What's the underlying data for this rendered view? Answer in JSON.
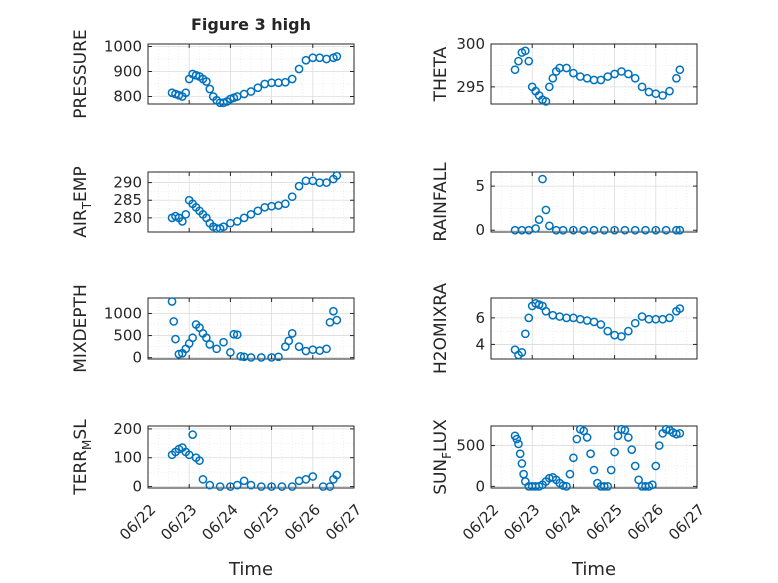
{
  "figure": {
    "title": "Figure 3 high",
    "xlabel": "Time",
    "date_ticks": [
      "06/22",
      "06/23",
      "06/24",
      "06/25",
      "06/26",
      "06/27"
    ]
  },
  "chart_data": [
    {
      "type": "scatter",
      "id": "pressure",
      "title": "Figure 3 high",
      "ylabel": "PRESSURE",
      "xlabel": "",
      "ylim": [
        770,
        1010
      ],
      "yticks": [
        "800",
        "900",
        "1000"
      ],
      "ytick_values": [
        800,
        900,
        1000
      ],
      "grid": true,
      "marker": "circle-open",
      "color": "#0072BD",
      "x": [
        "06/22 14:00",
        "06/22 16:00",
        "06/22 18:00",
        "06/22 20:00",
        "06/22 22:00",
        "06/23 00:00",
        "06/23 02:00",
        "06/23 04:00",
        "06/23 06:00",
        "06/23 08:00",
        "06/23 10:00",
        "06/23 12:00",
        "06/23 14:00",
        "06/23 16:00",
        "06/23 18:00",
        "06/23 20:00",
        "06/23 22:00",
        "06/24 00:00",
        "06/24 02:00",
        "06/24 04:00",
        "06/24 08:00",
        "06/24 12:00",
        "06/24 16:00",
        "06/24 20:00",
        "06/25 00:00",
        "06/25 04:00",
        "06/25 08:00",
        "06/25 12:00",
        "06/25 16:00",
        "06/25 20:00",
        "06/26 00:00",
        "06/26 04:00",
        "06/26 08:00",
        "06/26 12:00",
        "06/26 14:00"
      ],
      "y": [
        815,
        810,
        805,
        800,
        815,
        870,
        890,
        885,
        880,
        870,
        860,
        830,
        800,
        785,
        775,
        775,
        780,
        790,
        795,
        800,
        810,
        820,
        835,
        850,
        855,
        855,
        857,
        870,
        910,
        945,
        955,
        955,
        950,
        955,
        960
      ]
    },
    {
      "type": "scatter",
      "id": "theta",
      "title": "",
      "ylabel": "THETA",
      "xlabel": "",
      "ylim": [
        293,
        300
      ],
      "yticks": [
        "295",
        "300"
      ],
      "ytick_values": [
        295,
        300
      ],
      "grid": true,
      "marker": "circle-open",
      "color": "#0072BD",
      "x": [
        "06/22 14:00",
        "06/22 16:00",
        "06/22 18:00",
        "06/22 20:00",
        "06/22 22:00",
        "06/23 00:00",
        "06/23 02:00",
        "06/23 04:00",
        "06/23 06:00",
        "06/23 08:00",
        "06/23 10:00",
        "06/23 12:00",
        "06/23 14:00",
        "06/23 16:00",
        "06/23 20:00",
        "06/24 00:00",
        "06/24 04:00",
        "06/24 08:00",
        "06/24 12:00",
        "06/24 16:00",
        "06/24 20:00",
        "06/25 00:00",
        "06/25 04:00",
        "06/25 08:00",
        "06/25 12:00",
        "06/25 16:00",
        "06/25 20:00",
        "06/26 00:00",
        "06/26 04:00",
        "06/26 08:00",
        "06/26 12:00",
        "06/26 14:00"
      ],
      "y": [
        297,
        298,
        299,
        299.2,
        298,
        295,
        294.5,
        294,
        293.5,
        293.3,
        295,
        296,
        296.8,
        297.2,
        297.2,
        296.6,
        296.2,
        296,
        295.8,
        295.8,
        296.2,
        296.5,
        296.8,
        296.5,
        296,
        295,
        294.4,
        294.2,
        294,
        294.5,
        296,
        297
      ]
    },
    {
      "type": "scatter",
      "id": "air_temp",
      "title": "",
      "ylabel": "AIR_TEMP",
      "ylabel_main": "AIR",
      "ylabel_sub": "T",
      "ylabel_rest": "EMP",
      "xlabel": "",
      "ylim": [
        276,
        293
      ],
      "yticks": [
        "280",
        "285",
        "290"
      ],
      "ytick_values": [
        280,
        285,
        290
      ],
      "grid": true,
      "marker": "circle-open",
      "color": "#0072BD",
      "x": [
        "06/22 14:00",
        "06/22 16:00",
        "06/22 18:00",
        "06/22 20:00",
        "06/22 22:00",
        "06/23 00:00",
        "06/23 02:00",
        "06/23 04:00",
        "06/23 06:00",
        "06/23 08:00",
        "06/23 10:00",
        "06/23 12:00",
        "06/23 14:00",
        "06/23 16:00",
        "06/23 18:00",
        "06/23 20:00",
        "06/24 00:00",
        "06/24 04:00",
        "06/24 08:00",
        "06/24 12:00",
        "06/24 16:00",
        "06/24 20:00",
        "06/25 00:00",
        "06/25 04:00",
        "06/25 08:00",
        "06/25 12:00",
        "06/25 16:00",
        "06/25 20:00",
        "06/26 00:00",
        "06/26 04:00",
        "06/26 08:00",
        "06/26 12:00",
        "06/26 14:00"
      ],
      "y": [
        280,
        280.5,
        280,
        279,
        281,
        285,
        284,
        283,
        282,
        281,
        280,
        278.5,
        277.5,
        277,
        277,
        277.5,
        278.5,
        279,
        280,
        281,
        282,
        283,
        283.3,
        283.5,
        284,
        286,
        289,
        290.5,
        290.5,
        290,
        290,
        291,
        292
      ]
    },
    {
      "type": "scatter",
      "id": "rainfall",
      "title": "",
      "ylabel": "RAINFALL",
      "xlabel": "",
      "ylim": [
        -0.2,
        6.6
      ],
      "yticks": [
        "0",
        "5"
      ],
      "ytick_values": [
        0,
        5
      ],
      "grid": true,
      "marker": "circle-open",
      "color": "#0072BD",
      "x": [
        "06/22 14:00",
        "06/22 18:00",
        "06/22 22:00",
        "06/23 02:00",
        "06/23 04:00",
        "06/23 06:00",
        "06/23 08:00",
        "06/23 10:00",
        "06/23 14:00",
        "06/23 18:00",
        "06/24 00:00",
        "06/24 06:00",
        "06/24 12:00",
        "06/24 18:00",
        "06/25 00:00",
        "06/25 06:00",
        "06/25 12:00",
        "06/25 18:00",
        "06/26 00:00",
        "06/26 06:00",
        "06/26 12:00",
        "06/26 14:00"
      ],
      "y": [
        0,
        0,
        0,
        0.2,
        1.2,
        5.8,
        2.3,
        0.5,
        0,
        0,
        0,
        0,
        0,
        0,
        0,
        0,
        0,
        0,
        0,
        0,
        0,
        0
      ]
    },
    {
      "type": "scatter",
      "id": "mixdepth",
      "title": "",
      "ylabel": "MIXDEPTH",
      "xlabel": "",
      "ylim": [
        -30,
        1350
      ],
      "yticks": [
        "0",
        "500",
        "1000"
      ],
      "ytick_values": [
        0,
        500,
        1000
      ],
      "grid": true,
      "marker": "circle-open",
      "color": "#0072BD",
      "x": [
        "06/22 14:00",
        "06/22 15:00",
        "06/22 16:00",
        "06/22 18:00",
        "06/22 20:00",
        "06/22 22:00",
        "06/23 00:00",
        "06/23 02:00",
        "06/23 04:00",
        "06/23 06:00",
        "06/23 08:00",
        "06/23 10:00",
        "06/23 12:00",
        "06/23 16:00",
        "06/23 20:00",
        "06/24 00:00",
        "06/24 02:00",
        "06/24 04:00",
        "06/24 06:00",
        "06/24 08:00",
        "06/24 12:00",
        "06/24 18:00",
        "06/25 00:00",
        "06/25 04:00",
        "06/25 08:00",
        "06/25 10:00",
        "06/25 12:00",
        "06/25 16:00",
        "06/25 20:00",
        "06/26 00:00",
        "06/26 04:00",
        "06/26 08:00",
        "06/26 10:00",
        "06/26 12:00",
        "06/26 14:00"
      ],
      "y": [
        1270,
        820,
        420,
        80,
        100,
        200,
        320,
        450,
        750,
        680,
        550,
        450,
        300,
        200,
        350,
        120,
        530,
        520,
        30,
        20,
        5,
        5,
        5,
        20,
        250,
        380,
        550,
        250,
        150,
        180,
        160,
        200,
        800,
        1050,
        850
      ]
    },
    {
      "type": "scatter",
      "id": "h2omixra",
      "title": "",
      "ylabel": "H2OMIXRA",
      "xlabel": "",
      "ylim": [
        2.9,
        7.5
      ],
      "yticks": [
        "4",
        "6"
      ],
      "ytick_values": [
        4,
        6
      ],
      "grid": true,
      "marker": "circle-open",
      "color": "#0072BD",
      "x": [
        "06/22 14:00",
        "06/22 16:00",
        "06/22 18:00",
        "06/22 20:00",
        "06/22 22:00",
        "06/23 00:00",
        "06/23 02:00",
        "06/23 04:00",
        "06/23 06:00",
        "06/23 08:00",
        "06/23 12:00",
        "06/23 16:00",
        "06/23 20:00",
        "06/24 00:00",
        "06/24 04:00",
        "06/24 08:00",
        "06/24 12:00",
        "06/24 16:00",
        "06/24 20:00",
        "06/25 00:00",
        "06/25 04:00",
        "06/25 08:00",
        "06/25 12:00",
        "06/25 16:00",
        "06/25 20:00",
        "06/26 00:00",
        "06/26 04:00",
        "06/26 08:00",
        "06/26 12:00",
        "06/26 14:00"
      ],
      "y": [
        3.6,
        3.2,
        3.4,
        4.8,
        6,
        6.9,
        7.1,
        7.0,
        6.9,
        6.5,
        6.2,
        6.1,
        6.0,
        6.0,
        5.9,
        5.8,
        5.7,
        5.5,
        5.0,
        4.7,
        4.6,
        5.0,
        5.6,
        6.1,
        5.9,
        5.9,
        5.9,
        6.0,
        6.5,
        6.7
      ]
    },
    {
      "type": "scatter",
      "id": "terr_msl",
      "title": "",
      "ylabel": "TERR_MSL",
      "ylabel_main": "TERR",
      "ylabel_sub": "M",
      "ylabel_rest": "SL",
      "xlabel": "Time",
      "ylim": [
        -5,
        210
      ],
      "yticks": [
        "0",
        "100",
        "200"
      ],
      "ytick_values": [
        0,
        100,
        200
      ],
      "grid": true,
      "marker": "circle-open",
      "color": "#0072BD",
      "x": [
        "06/22 14:00",
        "06/22 16:00",
        "06/22 18:00",
        "06/22 20:00",
        "06/22 22:00",
        "06/23 00:00",
        "06/23 02:00",
        "06/23 04:00",
        "06/23 06:00",
        "06/23 08:00",
        "06/23 12:00",
        "06/23 18:00",
        "06/24 00:00",
        "06/24 04:00",
        "06/24 08:00",
        "06/24 12:00",
        "06/24 18:00",
        "06/25 00:00",
        "06/25 06:00",
        "06/25 12:00",
        "06/25 16:00",
        "06/25 20:00",
        "06/26 00:00",
        "06/26 06:00",
        "06/26 10:00",
        "06/26 12:00",
        "06/26 14:00"
      ],
      "y": [
        110,
        120,
        130,
        135,
        120,
        110,
        180,
        100,
        90,
        25,
        5,
        0,
        0,
        5,
        20,
        5,
        0,
        0,
        0,
        0,
        20,
        25,
        35,
        0,
        0,
        25,
        40
      ]
    },
    {
      "type": "scatter",
      "id": "sun_flux",
      "title": "",
      "ylabel": "SUN_FLUX",
      "ylabel_main": "SUN",
      "ylabel_sub": "F",
      "ylabel_rest": "LUX",
      "xlabel": "Time",
      "ylim": [
        -20,
        740
      ],
      "yticks": [
        "0",
        "500"
      ],
      "ytick_values": [
        0,
        500
      ],
      "grid": true,
      "marker": "circle-open",
      "color": "#0072BD",
      "x": [
        "06/22 14:00",
        "06/22 15:00",
        "06/22 16:00",
        "06/22 17:00",
        "06/22 18:00",
        "06/22 19:00",
        "06/22 20:00",
        "06/22 22:00",
        "06/23 00:00",
        "06/23 02:00",
        "06/23 04:00",
        "06/23 06:00",
        "06/23 08:00",
        "06/23 10:00",
        "06/23 12:00",
        "06/23 14:00",
        "06/23 16:00",
        "06/23 18:00",
        "06/23 20:00",
        "06/23 22:00",
        "06/24 00:00",
        "06/24 02:00",
        "06/24 04:00",
        "06/24 06:00",
        "06/24 08:00",
        "06/24 10:00",
        "06/24 12:00",
        "06/24 14:00",
        "06/24 16:00",
        "06/24 18:00",
        "06/24 20:00",
        "06/24 22:00",
        "06/25 00:00",
        "06/25 02:00",
        "06/25 04:00",
        "06/25 06:00",
        "06/25 08:00",
        "06/25 10:00",
        "06/25 12:00",
        "06/25 14:00",
        "06/25 16:00",
        "06/25 18:00",
        "06/25 20:00",
        "06/25 22:00",
        "06/26 00:00",
        "06/26 02:00",
        "06/26 04:00",
        "06/26 06:00",
        "06/26 08:00",
        "06/26 10:00",
        "06/26 12:00",
        "06/26 14:00"
      ],
      "y": [
        620,
        580,
        520,
        400,
        280,
        150,
        60,
        0,
        0,
        0,
        0,
        20,
        60,
        100,
        110,
        80,
        40,
        10,
        0,
        150,
        350,
        580,
        700,
        680,
        600,
        400,
        200,
        40,
        0,
        0,
        0,
        200,
        420,
        620,
        700,
        690,
        600,
        450,
        250,
        80,
        0,
        0,
        0,
        20,
        250,
        500,
        650,
        700,
        690,
        660,
        640,
        650
      ]
    }
  ],
  "colors": {
    "marker": "#0072BD",
    "axes": "#262626",
    "grid": "#DCDCDC"
  }
}
